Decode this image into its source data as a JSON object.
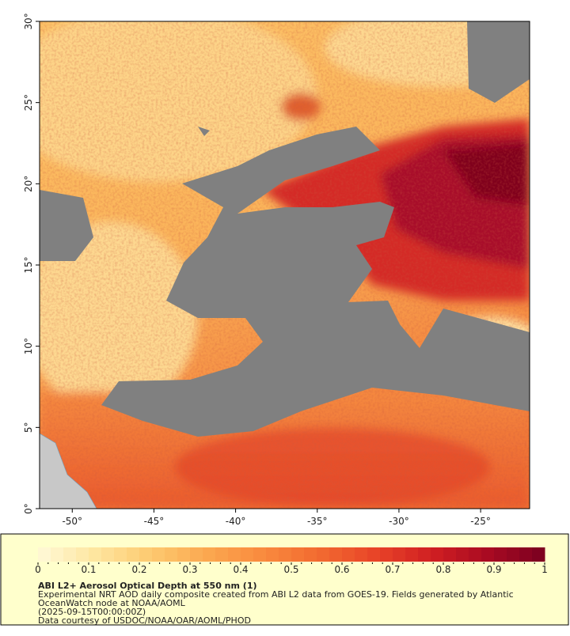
{
  "map": {
    "lon_range": [
      -52,
      -22
    ],
    "lat_range": [
      0,
      30
    ],
    "lon_ticks": [
      {
        "value": -50,
        "label": "-50°"
      },
      {
        "value": -45,
        "label": "-45°"
      },
      {
        "value": -40,
        "label": "-40°"
      },
      {
        "value": -35,
        "label": "-35°"
      },
      {
        "value": -30,
        "label": "-30°"
      },
      {
        "value": -25,
        "label": "-25°"
      }
    ],
    "lat_ticks": [
      {
        "value": 0,
        "label": "0°"
      },
      {
        "value": 5,
        "label": "5°"
      },
      {
        "value": 10,
        "label": "10°"
      },
      {
        "value": 15,
        "label": "15°"
      },
      {
        "value": 20,
        "label": "20°"
      },
      {
        "value": 25,
        "label": "25°"
      },
      {
        "value": 30,
        "label": "30°"
      }
    ]
  },
  "legend": {
    "title": "ABI L2+ Aerosol Optical Depth at 550 nm (1)",
    "lines": [
      "Experimental NRT AOD daily composite created from ABI L2 data from GOES-19. Fields generated by Atlantic",
      "OceanWatch node at NOAA/AOML",
      "(2025-09-15T00:00:00Z)",
      "Data courtesy of USDOC/NOAA/OAR/AOML/PHOD"
    ],
    "range": [
      0,
      1
    ],
    "ticks": [
      0,
      0.1,
      0.2,
      0.3,
      0.4,
      0.5,
      0.6,
      0.7,
      0.8,
      0.9,
      1
    ],
    "colors": [
      "#fff9d8",
      "#fee6a0",
      "#fdca70",
      "#fba850",
      "#f98a3e",
      "#f26a30",
      "#e84428",
      "#d01f22",
      "#a80a22",
      "#7a0020"
    ]
  }
}
